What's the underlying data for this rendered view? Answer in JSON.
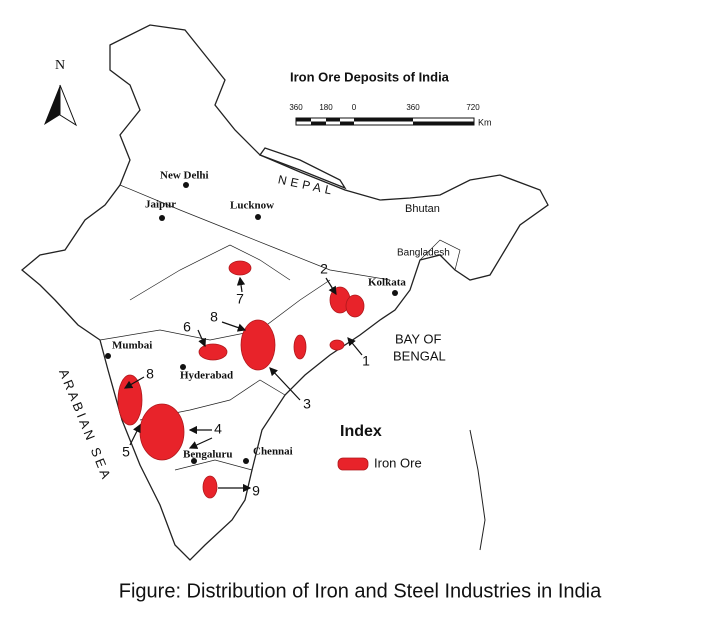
{
  "map": {
    "title": "Iron Ore Deposits of India",
    "north": "N",
    "scale": {
      "labels": [
        "360",
        "180",
        "0",
        "360",
        "720"
      ],
      "unit": "Km"
    },
    "places": [
      "New Delhi",
      "Jaipur",
      "Lucknow",
      "Kolkata",
      "Mumbai",
      "Hyderabad",
      "Bengaluru",
      "Chennai"
    ],
    "countries": [
      "NEPAL",
      "Bhutan",
      "Bangladesh"
    ],
    "seas": [
      "BAY OF",
      "BENGAL",
      "ARABIAN SEA"
    ],
    "numbers": [
      "1",
      "2",
      "3",
      "4",
      "5",
      "6",
      "7",
      "8",
      "8",
      "9"
    ],
    "legend": {
      "title": "Index",
      "item": "Iron Ore"
    }
  },
  "caption": "Figure: Distribution of Iron and Steel  Industries in India"
}
